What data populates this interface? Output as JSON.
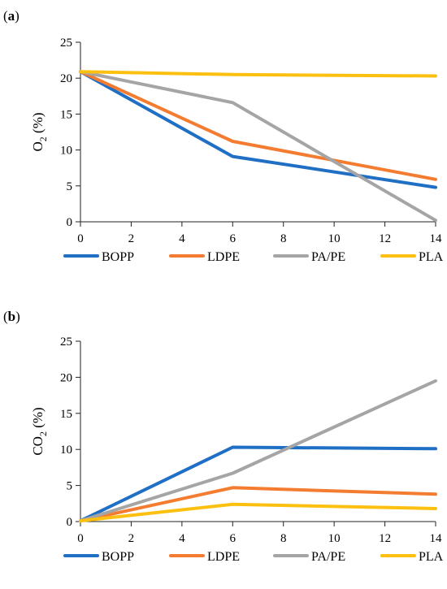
{
  "chart_data": [
    {
      "type": "line",
      "panel_label": "(a)",
      "ylabel": "O2 (%)",
      "ylabel_main": "O",
      "ylabel_sub": "2",
      "ylabel_rest": " (%)",
      "xlabel": "",
      "title": "",
      "xlim": [
        0,
        14
      ],
      "ylim": [
        0,
        25
      ],
      "x_ticks": [
        "0",
        "2",
        "4",
        "6",
        "8",
        "10",
        "12",
        "14"
      ],
      "y_ticks": [
        "0",
        "5",
        "10",
        "15",
        "20",
        "25"
      ],
      "grid": false,
      "legend_position": "bottom",
      "x": [
        0,
        6,
        14
      ],
      "series": [
        {
          "name": "BOPP",
          "color": "#1f6fc5",
          "values": [
            20.9,
            9.1,
            4.8
          ]
        },
        {
          "name": "LDPE",
          "color": "#f47c30",
          "values": [
            20.9,
            11.2,
            5.9
          ]
        },
        {
          "name": "PA/PE",
          "color": "#a5a5a5",
          "values": [
            20.9,
            16.6,
            0.2
          ]
        },
        {
          "name": "PLA",
          "color": "#fcc010",
          "values": [
            20.9,
            20.5,
            20.3
          ]
        }
      ]
    },
    {
      "type": "line",
      "panel_label": "(b)",
      "ylabel": "CO2 (%)",
      "ylabel_main": "CO",
      "ylabel_sub": "2",
      "ylabel_rest": " (%)",
      "xlabel": "",
      "title": "",
      "xlim": [
        0,
        14
      ],
      "ylim": [
        0,
        25
      ],
      "x_ticks": [
        "0",
        "2",
        "4",
        "6",
        "8",
        "10",
        "12",
        "14"
      ],
      "y_ticks": [
        "0",
        "5",
        "10",
        "15",
        "20",
        "25"
      ],
      "grid": false,
      "legend_position": "bottom",
      "x": [
        0,
        6,
        14
      ],
      "series": [
        {
          "name": "BOPP",
          "color": "#1f6fc5",
          "values": [
            0.1,
            10.3,
            10.1
          ]
        },
        {
          "name": "LDPE",
          "color": "#f47c30",
          "values": [
            0.1,
            4.7,
            3.8
          ]
        },
        {
          "name": "PA/PE",
          "color": "#a5a5a5",
          "values": [
            0.1,
            6.7,
            19.5
          ]
        },
        {
          "name": "PLA",
          "color": "#fcc010",
          "values": [
            0.1,
            2.4,
            1.8
          ]
        }
      ]
    }
  ]
}
